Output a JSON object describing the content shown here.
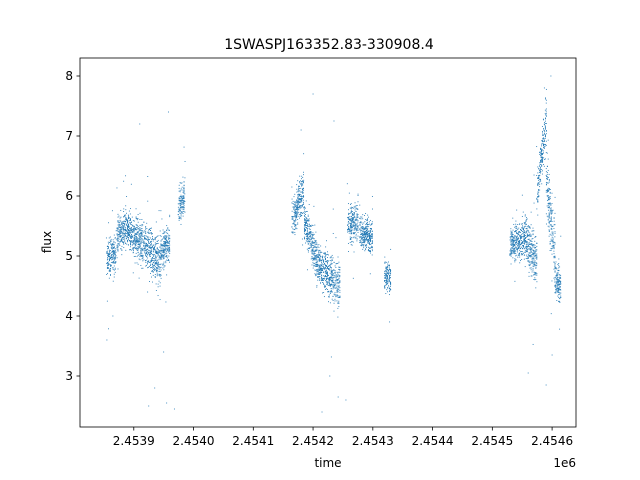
{
  "chart_data": {
    "type": "scatter",
    "title": "1SWASPJ163352.83-330908.4",
    "xlabel": "time",
    "ylabel": "flux",
    "x_offset_label": "1e6",
    "x_tick_labels": [
      "2.4539",
      "2.4540",
      "2.4541",
      "2.4542",
      "2.4543",
      "2.4544",
      "2.4545",
      "2.4546"
    ],
    "x_ticks": [
      2453900,
      2454000,
      2454100,
      2454200,
      2454300,
      2454400,
      2454500,
      2454600
    ],
    "y_ticks": [
      3,
      4,
      5,
      6,
      7,
      8
    ],
    "y_tick_labels": [
      "3",
      "4",
      "5",
      "6",
      "7",
      "8"
    ],
    "xlim": [
      2453810,
      2454640
    ],
    "ylim": [
      2.15,
      8.3
    ],
    "grid": false,
    "marker_color": "#1f77b4",
    "seasons": [
      {
        "segments": [
          {
            "x": [
              2453855,
              2453870
            ],
            "y": [
              4.95,
              5.05
            ],
            "spread": 0.3
          },
          {
            "x": [
              2453872,
              2453885
            ],
            "y": [
              5.3,
              5.45
            ],
            "spread": 0.3
          },
          {
            "x": [
              2453885,
              2453905
            ],
            "y": [
              5.5,
              5.3
            ],
            "spread": 0.3
          },
          {
            "x": [
              2453905,
              2453930
            ],
            "y": [
              5.3,
              5.1
            ],
            "spread": 0.35
          },
          {
            "x": [
              2453930,
              2453945
            ],
            "y": [
              5.0,
              4.9
            ],
            "spread": 0.4
          },
          {
            "x": [
              2453945,
              2453960
            ],
            "y": [
              5.05,
              5.25
            ],
            "spread": 0.3
          },
          {
            "x": [
              2453975,
              2453985
            ],
            "y": [
              5.8,
              6.0
            ],
            "spread": 0.3
          }
        ]
      },
      {
        "segments": [
          {
            "x": [
              2454165,
              2454185
            ],
            "y": [
              5.6,
              6.1
            ],
            "spread": 0.3
          },
          {
            "x": [
              2454185,
              2454205
            ],
            "y": [
              5.6,
              5.0
            ],
            "spread": 0.3
          },
          {
            "x": [
              2454205,
              2454245
            ],
            "y": [
              4.9,
              4.5
            ],
            "spread": 0.35
          },
          {
            "x": [
              2454258,
              2454275
            ],
            "y": [
              5.5,
              5.6
            ],
            "spread": 0.3
          },
          {
            "x": [
              2454278,
              2454300
            ],
            "y": [
              5.4,
              5.3
            ],
            "spread": 0.25
          },
          {
            "x": [
              2454320,
              2454330
            ],
            "y": [
              4.7,
              4.6
            ],
            "spread": 0.25
          }
        ]
      },
      {
        "segments": [
          {
            "x": [
              2454530,
              2454555
            ],
            "y": [
              5.2,
              5.3
            ],
            "spread": 0.3
          },
          {
            "x": [
              2454555,
              2454575
            ],
            "y": [
              5.3,
              4.9
            ],
            "spread": 0.4
          },
          {
            "x": [
              2454575,
              2454590
            ],
            "y": [
              6.0,
              7.3
            ],
            "spread": 0.35
          },
          {
            "x": [
              2454590,
              2454605
            ],
            "y": [
              6.3,
              5.0
            ],
            "spread": 0.5
          },
          {
            "x": [
              2454605,
              2454615
            ],
            "y": [
              4.6,
              4.5
            ],
            "spread": 0.3
          }
        ]
      }
    ],
    "outliers": [
      {
        "x": 2453855,
        "y": 3.6
      },
      {
        "x": 2453865,
        "y": 4.0
      },
      {
        "x": 2453925,
        "y": 2.5
      },
      {
        "x": 2453935,
        "y": 2.8
      },
      {
        "x": 2453950,
        "y": 3.4
      },
      {
        "x": 2453955,
        "y": 2.55
      },
      {
        "x": 2453958,
        "y": 7.4
      },
      {
        "x": 2453968,
        "y": 2.45
      },
      {
        "x": 2453910,
        "y": 7.2
      },
      {
        "x": 2454200,
        "y": 7.7
      },
      {
        "x": 2454180,
        "y": 7.1
      },
      {
        "x": 2454215,
        "y": 2.4
      },
      {
        "x": 2454228,
        "y": 3.0
      },
      {
        "x": 2454242,
        "y": 2.65
      },
      {
        "x": 2454255,
        "y": 2.6
      },
      {
        "x": 2454235,
        "y": 7.25
      },
      {
        "x": 2454590,
        "y": 2.85
      },
      {
        "x": 2454600,
        "y": 3.35
      },
      {
        "x": 2454598,
        "y": 8.0
      },
      {
        "x": 2454560,
        "y": 3.05
      }
    ]
  }
}
